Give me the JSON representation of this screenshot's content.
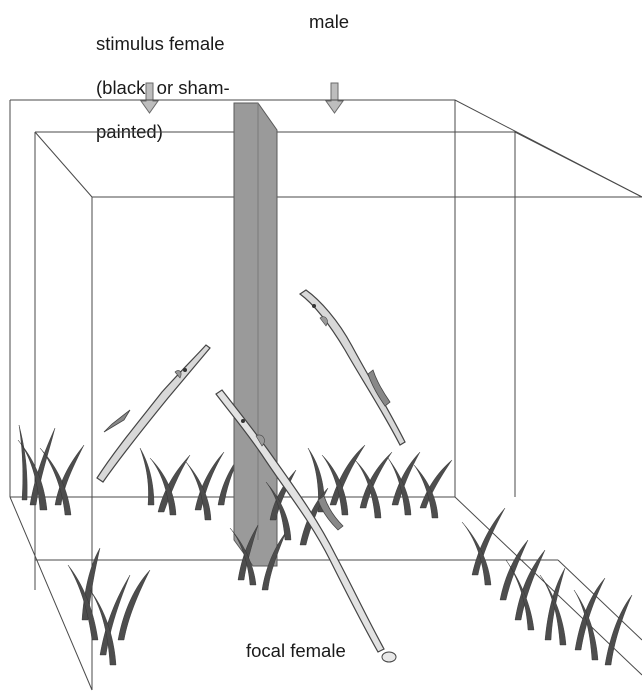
{
  "labels": {
    "stimulus_female_line1": "stimulus female",
    "stimulus_female_line2": "(black- or sham-",
    "stimulus_female_line3": "painted)",
    "male": "male",
    "focal_female": "focal female"
  },
  "colors": {
    "divider": "#9a9a9a",
    "tank_edges": "#4a4a4a",
    "seagrass": "#4d4d4d",
    "fish_body": "#d8d8d8",
    "arrow": "#bdbdbd"
  },
  "icons": {
    "arrow": "down-arrow-icon",
    "fish": "pipefish-icon",
    "grass": "seagrass-icon"
  }
}
